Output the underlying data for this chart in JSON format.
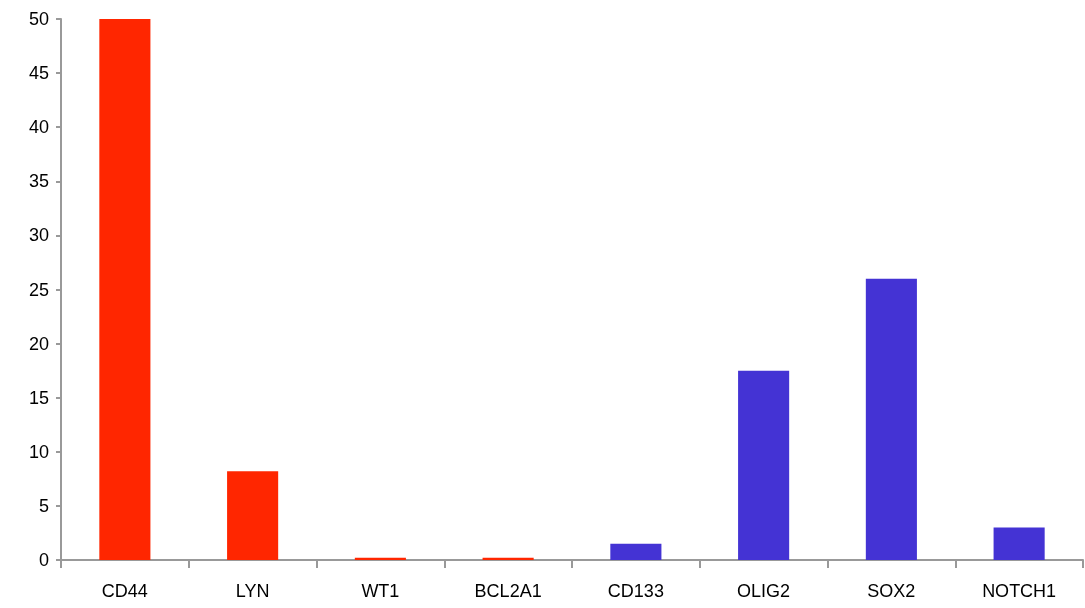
{
  "chart_data": {
    "type": "bar",
    "categories": [
      "CD44",
      "LYN",
      "WT1",
      "BCL2A1",
      "CD133",
      "OLIG2",
      "SOX2",
      "NOTCH1"
    ],
    "values": [
      50,
      8.2,
      0.2,
      0.2,
      1.5,
      17.5,
      26.0,
      3.0
    ],
    "colors": [
      "#ff2600",
      "#ff2600",
      "#ff2600",
      "#ff2600",
      "#4433d4",
      "#4433d4",
      "#4433d4",
      "#4433d4"
    ],
    "ylim": [
      0,
      50
    ],
    "yticks": [
      0,
      5,
      10,
      15,
      20,
      25,
      30,
      35,
      40,
      45,
      50
    ]
  }
}
